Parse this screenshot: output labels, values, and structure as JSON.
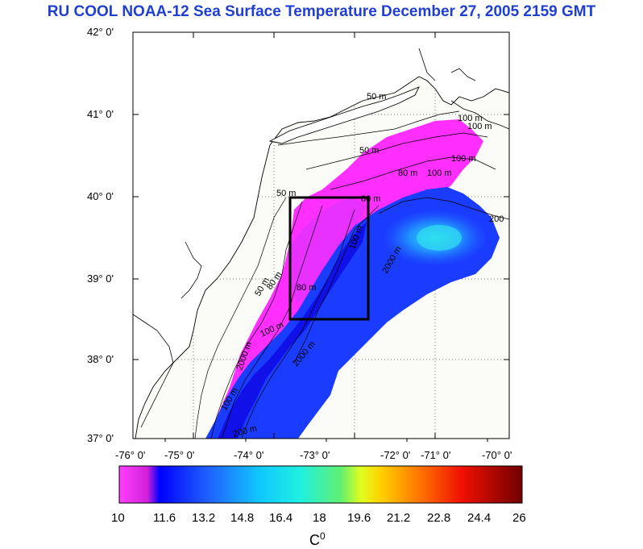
{
  "title": "RU COOL  NOAA-12 Sea Surface Temperature December 27, 2005 2159 GMT",
  "map": {
    "lat_labels": [
      "42° 0'",
      "41° 0'",
      "40° 0'",
      "39° 0'",
      "38° 0'",
      "37° 0'"
    ],
    "lon_labels": [
      "-76° 0'",
      "-75° 0'",
      "-74° 0'",
      "-73° 0'",
      "-72° 0'",
      "-71° 0'",
      "-70° 0'"
    ],
    "lat_range": [
      37,
      42
    ],
    "lon_range": [
      -76,
      -70
    ],
    "study_box": {
      "lon_min": -73.5,
      "lon_max": -72.3,
      "lat_min": 38.5,
      "lat_max": 40.0
    },
    "isobath_labels": [
      "50 m",
      "50 m",
      "50 m",
      "80 m",
      "80 m",
      "80 m",
      "100 m",
      "100 m",
      "100 m",
      "100 m",
      "200",
      "50 m",
      "80 m",
      "100 m",
      "2000 m",
      "2000 m",
      "100 m",
      "2000 m",
      "100 m",
      "200 m"
    ]
  },
  "colorbar": {
    "tick_labels": [
      "10",
      "11.6",
      "13.2",
      "14.8",
      "16.4",
      "18",
      "19.6",
      "21.2",
      "22.8",
      "24.4",
      "26"
    ],
    "range": [
      10,
      26
    ],
    "unit_base": "C",
    "unit_sup": "0",
    "colors": [
      "#ff40ff",
      "#e020e0",
      "#1010ff",
      "#2060ff",
      "#20b0ff",
      "#20f0ff",
      "#30e0a0",
      "#c0ff40",
      "#ffff00",
      "#ff8000",
      "#ff2000",
      "#c00000",
      "#700000"
    ]
  }
}
